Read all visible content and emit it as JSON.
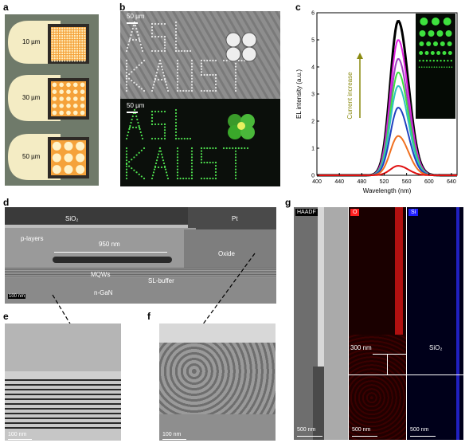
{
  "panel_labels": {
    "a": "a",
    "b": "b",
    "c": "c",
    "d": "d",
    "e": "e",
    "f": "f",
    "g": "g"
  },
  "panel_a": {
    "sizes": [
      "10 µm",
      "30 µm",
      "50 µm"
    ]
  },
  "panel_b": {
    "scale_top": "50 µm",
    "scale_bottom": "50 µm",
    "text_line1": "ASL",
    "text_line2": "KAUST",
    "colors": {
      "top_bg": "#8c8c8c",
      "bottom_bg": "#0b0f0b",
      "dots": "#4fe04f"
    }
  },
  "panel_c": {
    "annotation": "Current increase",
    "chart_data": {
      "type": "line",
      "xlabel": "Wavelength (nm)",
      "ylabel": "EL intensity (a.u.)",
      "xlim": [
        400,
        650
      ],
      "ylim": [
        0,
        6
      ],
      "xticks": [
        400,
        440,
        480,
        520,
        560,
        600,
        640
      ],
      "yticks": [
        0,
        1,
        2,
        3,
        4,
        5,
        6
      ],
      "peak_wavelength": 545,
      "series": [
        {
          "color": "#000000",
          "peak": 5.7
        },
        {
          "color": "#e020e0",
          "peak": 5.0
        },
        {
          "color": "#a040c0",
          "peak": 4.3
        },
        {
          "color": "#40e040",
          "peak": 3.8
        },
        {
          "color": "#30c0c0",
          "peak": 3.3
        },
        {
          "color": "#2040c0",
          "peak": 2.5
        },
        {
          "color": "#f07020",
          "peak": 1.45
        },
        {
          "color": "#e01010",
          "peak": 0.35
        }
      ]
    }
  },
  "panel_d": {
    "labels": {
      "sio2": "SiO₂",
      "pt": "Pt",
      "players": "p-layers",
      "length": "950 nm",
      "oxide": "Oxide",
      "mqws": "MQWs",
      "slbuffer": "SL-buffer",
      "ngan": "n-GaN"
    },
    "scale": "100 nm"
  },
  "panel_e": {
    "scale": "100 nm"
  },
  "panel_f": {
    "scale": "100 nm"
  },
  "panel_g": {
    "haadf": "HAADF",
    "o": "O",
    "si": "Si",
    "dist": "300 nm",
    "sio2": "SiO₂",
    "scale1": "500 nm",
    "scale2": "500 nm",
    "scale3": "500 nm",
    "colors": {
      "o": "#ff2020",
      "si": "#2020ff"
    }
  }
}
